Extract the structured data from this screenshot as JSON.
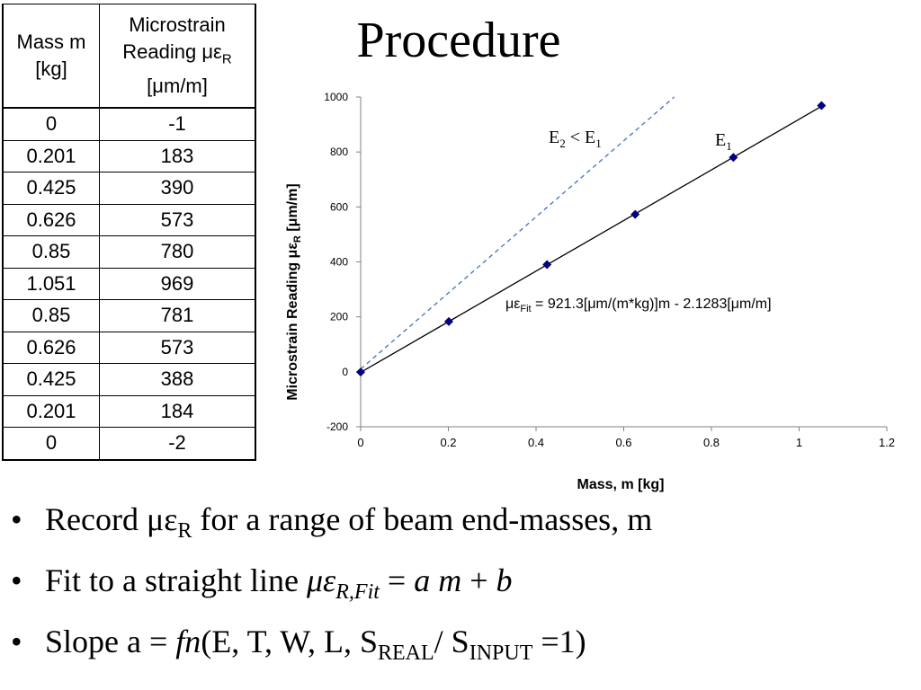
{
  "title": "Procedure",
  "table": {
    "headers": [
      "Mass m [kg]",
      "Microstrain Reading μεR [μm/m]"
    ],
    "header_lines": [
      [
        "Mass m",
        "[kg]"
      ],
      [
        "Microstrain",
        "Reading με",
        "R",
        "[μm/m]"
      ]
    ],
    "rows": [
      [
        "0",
        "-1"
      ],
      [
        "0.201",
        "183"
      ],
      [
        "0.425",
        "390"
      ],
      [
        "0.626",
        "573"
      ],
      [
        "0.85",
        "780"
      ],
      [
        "1.051",
        "969"
      ],
      [
        "0.85",
        "781"
      ],
      [
        "0.626",
        "573"
      ],
      [
        "0.425",
        "388"
      ],
      [
        "0.201",
        "184"
      ],
      [
        "0",
        "-2"
      ]
    ]
  },
  "chart_data": {
    "type": "scatter",
    "xlabel": "Mass, m [kg]",
    "ylabel_parts": [
      "Microstrain Reading με",
      "R",
      " [μm/m]"
    ],
    "xlim": [
      0,
      1.2
    ],
    "ylim": [
      -200,
      1000
    ],
    "xticks": [
      "0",
      "0.2",
      "0.4",
      "0.6",
      "0.8",
      "1",
      "1.2"
    ],
    "yticks": [
      "-200",
      "0",
      "200",
      "400",
      "600",
      "800",
      "1000"
    ],
    "xtick_values": [
      0,
      0.2,
      0.4,
      0.6,
      0.8,
      1.0,
      1.2
    ],
    "ytick_values": [
      -200,
      0,
      200,
      400,
      600,
      800,
      1000
    ],
    "grid": false,
    "series": [
      {
        "label": "E1",
        "color": "#000080",
        "points": [
          [
            0,
            -1
          ],
          [
            0.201,
            183
          ],
          [
            0.425,
            390
          ],
          [
            0.626,
            573
          ],
          [
            0.85,
            780
          ],
          [
            1.051,
            969
          ]
        ]
      }
    ],
    "fit_line": {
      "slope": 921.3,
      "intercept": -2.1283,
      "x_range": [
        0,
        1.051
      ],
      "color": "#000000"
    },
    "comparison_line": {
      "x": [
        0,
        0.715
      ],
      "y": [
        10,
        1000
      ],
      "color": "#4a7cc4",
      "dashed": true
    },
    "annotations": {
      "e1": [
        "E",
        "1"
      ],
      "e2": [
        "E",
        "2",
        " < E",
        "1"
      ],
      "fit_eq": [
        "με",
        "Fit",
        " = 921.3[μm/(m*kg)]m - 2.1283[μm/m]"
      ]
    }
  },
  "bullets": {
    "b1": {
      "pre": "Record με",
      "sub": "R",
      "post": " for a range of beam end-masses, m"
    },
    "b2": {
      "pre": "Fit to a straight line ",
      "mu": "με",
      "sub": "R,Fit",
      "eq": " = ",
      "am": "a m",
      "plus": " + ",
      "b": "b"
    },
    "b3": {
      "pre": "Slope a = ",
      "fn": "fn",
      "args": "(E, T, W, L, S",
      "sub1": "REAL",
      "mid": "/ S",
      "sub2": "INPUT",
      "end": " =1)"
    }
  },
  "bullet_char": "•"
}
